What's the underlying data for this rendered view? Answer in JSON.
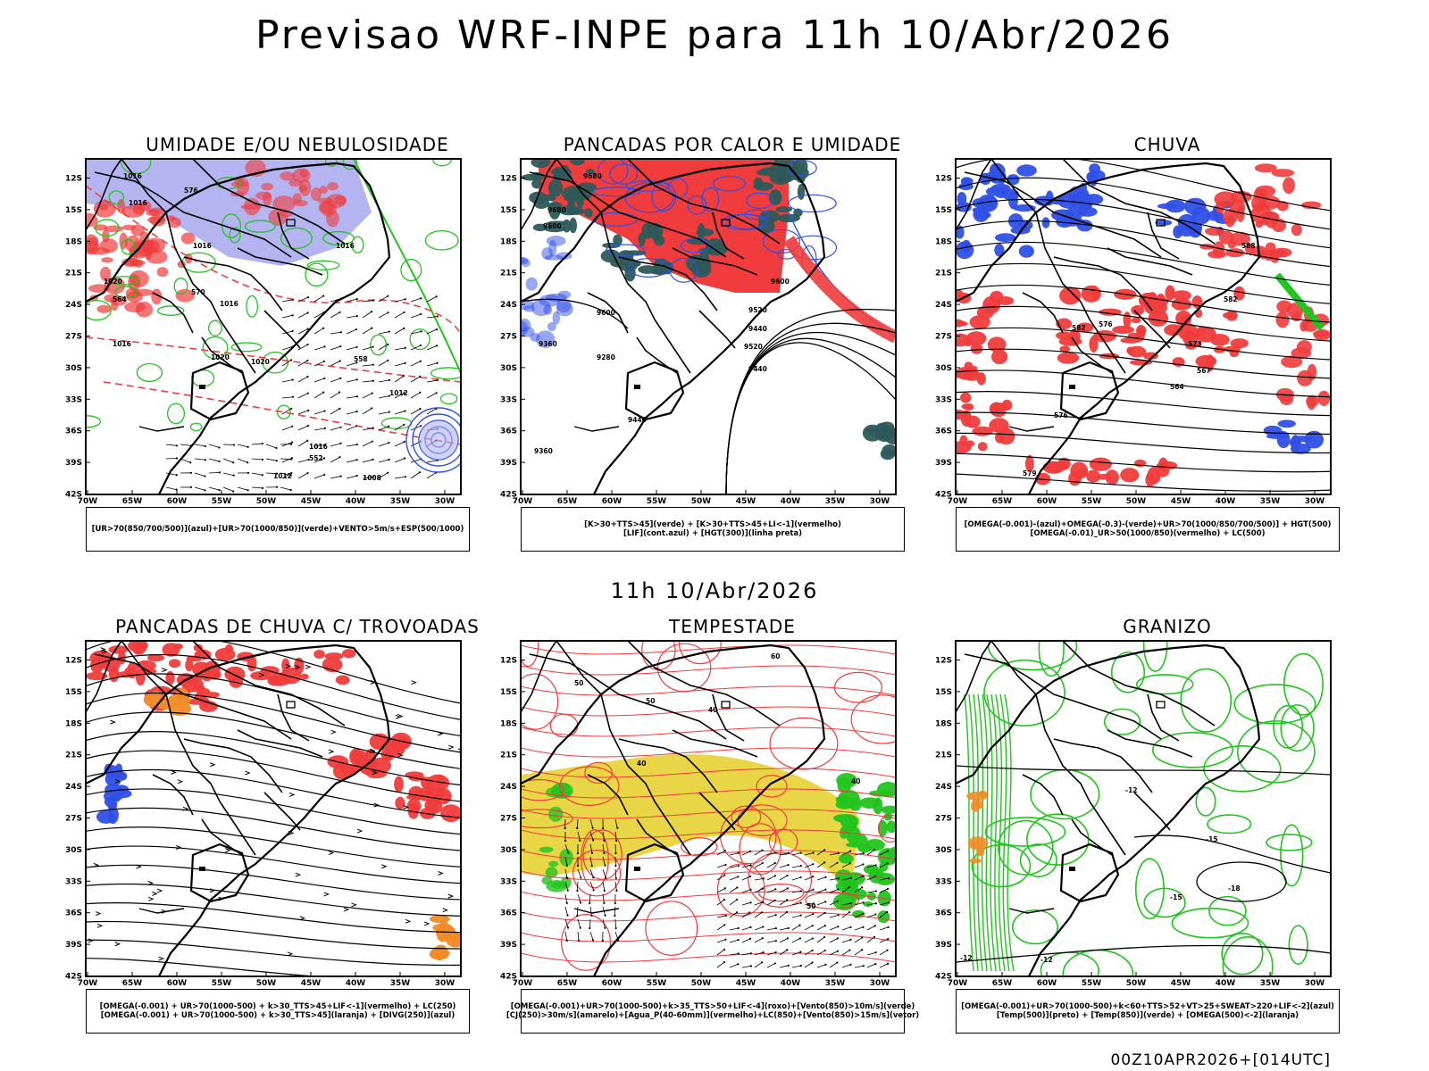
{
  "title": "Previsao WRF-INPE  para 11h 10/Abr/2026",
  "middle_title": "11h 10/Abr/2026",
  "footer": "00Z10APR2026+[014UTC]",
  "lat_labels": [
    "12S",
    "15S",
    "18S",
    "21S",
    "24S",
    "27S",
    "30S",
    "33S",
    "36S",
    "39S",
    "42S"
  ],
  "lon_labels": [
    "70W",
    "65W",
    "60W",
    "55W",
    "50W",
    "45W",
    "40W",
    "35W",
    "30W"
  ],
  "colors": {
    "blue": "#3050e6",
    "green": "#22c41e",
    "red": "#f03c3c",
    "lavender": "#b4b4f0",
    "yellow": "#e6d232",
    "darkteal": "#2e5a5a",
    "orange": "#f08c28"
  },
  "panels": [
    {
      "title": "UMIDADE E/OU NEBULOSIDADE",
      "legend": [
        "[UR>70(850/700/500)](azul)+[UR>70(1000/850)](verde)+VENTO>5m/s+ESP(500/1000)"
      ],
      "contour_labels": [
        "1016",
        "1016",
        "1016",
        "1016",
        "1020",
        "1016",
        "1020",
        "1020",
        "1016",
        "1012",
        "1016",
        "1012",
        "1008",
        "576",
        "570",
        "564",
        "558",
        "552"
      ]
    },
    {
      "title": "PANCADAS POR CALOR E UMIDADE",
      "legend": [
        "[K>30+TTS>45](verde) + [K>30+TTS>45+LI<-1](vermelho)",
        "[LIF](cont.azul) + [HGT(300)](linha preta)"
      ],
      "contour_labels": [
        "9680",
        "9680",
        "9600",
        "9600",
        "9520",
        "9440",
        "9520",
        "9440",
        "9360",
        "9280",
        "9360",
        "9440",
        "9600"
      ]
    },
    {
      "title": "CHUVA",
      "legend": [
        "[OMEGA(-0.001)-(azul)+OMEGA(-0.3)-(verde)+UR>70(1000/850/700/500)] + HGT(500)",
        "[OMEGA(-0.01)_UR>50(1000/850)(vermelho) + LC(500)"
      ],
      "contour_labels": [
        "588",
        "582",
        "582",
        "576",
        "573",
        "567",
        "564",
        "576",
        "579"
      ]
    },
    {
      "title": "PANCADAS DE CHUVA C/ TROVOADAS",
      "legend": [
        "[OMEGA(-0.001) + UR>70(1000-500) + k>30_TTS>45+LIF<-1](vermelho) + LC(250)",
        "[OMEGA(-0.001) + UR>70(1000-500) + k>30_TTS>45](laranja) + [DIVG(250)](azul)"
      ],
      "contour_labels": []
    },
    {
      "title": "TEMPESTADE",
      "legend": [
        "[OMEGA(-0.001)+UR>70(1000-500)+k>35_TTS>50+LIF<-4](roxo)+[Vento(850)>10m/s](verde)",
        "[CJ(250)>30m/s](amarelo)+[Agua_P(40-60mm)](vermelho)+LC(850)+[Vento(850)>15m/s](vetor)"
      ],
      "contour_labels": [
        "50",
        "40",
        "50",
        "40",
        "60",
        "40",
        "50"
      ]
    },
    {
      "title": "GRANIZO",
      "legend": [
        "[OMEGA(-0.001)+UR>70(1000-500)+k<60+TTS>52+VT>25+SWEAT>220+LIF<-2](azul)",
        "[Temp(500)](preto) + [Temp(850)](verde) + [OMEGA(500)<-2](laranja)"
      ],
      "contour_labels": [
        "-12",
        "-15",
        "-15",
        "-18",
        "-12",
        "-12"
      ]
    }
  ]
}
